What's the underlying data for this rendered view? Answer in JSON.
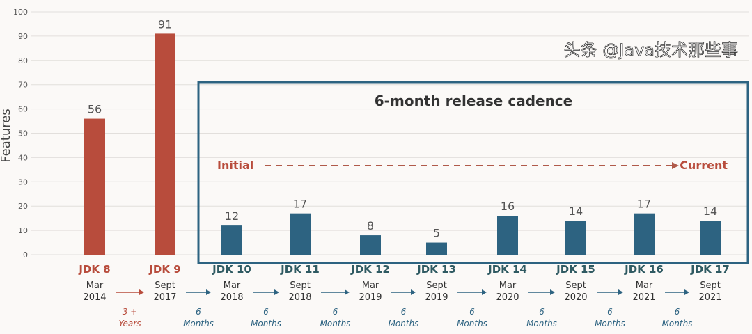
{
  "chart_data": {
    "type": "bar",
    "ylabel": "Features",
    "ylim": [
      0,
      100
    ],
    "yticks": [
      0,
      10,
      20,
      30,
      40,
      50,
      60,
      70,
      80,
      90,
      100
    ],
    "grid": true,
    "categories": [
      "JDK 8",
      "JDK 9",
      "JDK 10",
      "JDK 11",
      "JDK 12",
      "JDK 13",
      "JDK 14",
      "JDK 15",
      "JDK 16",
      "JDK 17"
    ],
    "dates": [
      [
        "Mar",
        "2014"
      ],
      [
        "Sept",
        "2017"
      ],
      [
        "Mar",
        "2018"
      ],
      [
        "Sept",
        "2018"
      ],
      [
        "Mar",
        "2019"
      ],
      [
        "Sept",
        "2019"
      ],
      [
        "Mar",
        "2020"
      ],
      [
        "Sept",
        "2020"
      ],
      [
        "Mar",
        "2021"
      ],
      [
        "Sept",
        "2021"
      ]
    ],
    "values": [
      56,
      91,
      12,
      17,
      8,
      5,
      16,
      14,
      17,
      14
    ],
    "intervals": [
      [
        "3 +",
        "Years"
      ],
      [
        "6",
        "Months"
      ],
      [
        "6",
        "Months"
      ],
      [
        "6",
        "Months"
      ],
      [
        "6",
        "Months"
      ],
      [
        "6",
        "Months"
      ],
      [
        "6",
        "Months"
      ],
      [
        "6",
        "Months"
      ],
      [
        "6",
        "Months"
      ]
    ],
    "annotations": {
      "box_title": "6-month release cadence",
      "initial": "Initial",
      "current": "Current"
    },
    "colors": {
      "legacy": "#b84c3c",
      "cadence": "#2d6381",
      "cadence_label": "#2f5a62"
    }
  },
  "watermark": "头条 @Java技术那些事"
}
